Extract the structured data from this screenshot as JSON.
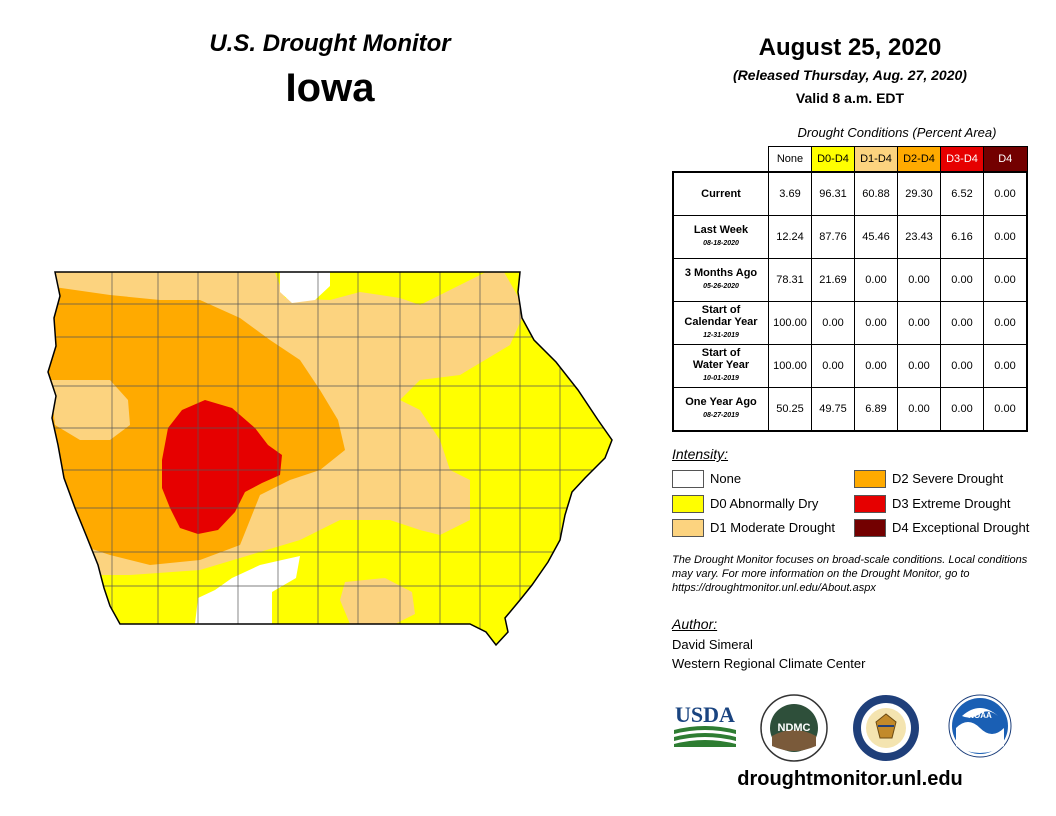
{
  "header": {
    "monitor_title": "U.S. Drought Monitor",
    "state": "Iowa",
    "date": "August 25, 2020",
    "released": "(Released Thursday, Aug. 27, 2020)",
    "valid": "Valid 8 a.m. EDT"
  },
  "table": {
    "caption": "Drought Conditions (Percent Area)",
    "columns": [
      {
        "label": "None",
        "color": "#ffffff",
        "text_color": "#000000"
      },
      {
        "label": "D0-D4",
        "color": "#ffff00",
        "text_color": "#000000"
      },
      {
        "label": "D1-D4",
        "color": "#fcd37f",
        "text_color": "#000000"
      },
      {
        "label": "D2-D4",
        "color": "#ffaa00",
        "text_color": "#000000"
      },
      {
        "label": "D3-D4",
        "color": "#e60000",
        "text_color": "#ffffff"
      },
      {
        "label": "D4",
        "color": "#730000",
        "text_color": "#ffffff"
      }
    ],
    "rows": [
      {
        "label": "Current",
        "label2": "",
        "date": "",
        "values": [
          "3.69",
          "96.31",
          "60.88",
          "29.30",
          "6.52",
          "0.00"
        ]
      },
      {
        "label": "Last Week",
        "label2": "",
        "date": "08-18-2020",
        "values": [
          "12.24",
          "87.76",
          "45.46",
          "23.43",
          "6.16",
          "0.00"
        ]
      },
      {
        "label": "3 Months Ago",
        "label2": "",
        "date": "05-26-2020",
        "values": [
          "78.31",
          "21.69",
          "0.00",
          "0.00",
          "0.00",
          "0.00"
        ]
      },
      {
        "label": "Start of",
        "label2": "Calendar Year",
        "date": "12-31-2019",
        "values": [
          "100.00",
          "0.00",
          "0.00",
          "0.00",
          "0.00",
          "0.00"
        ]
      },
      {
        "label": "Start of",
        "label2": "Water Year",
        "date": "10-01-2019",
        "values": [
          "100.00",
          "0.00",
          "0.00",
          "0.00",
          "0.00",
          "0.00"
        ]
      },
      {
        "label": "One Year Ago",
        "label2": "",
        "date": "08-27-2019",
        "values": [
          "50.25",
          "49.75",
          "6.89",
          "0.00",
          "0.00",
          "0.00"
        ]
      }
    ]
  },
  "legend": {
    "title": "Intensity:",
    "items": [
      {
        "label": "None",
        "color": "#ffffff"
      },
      {
        "label": "D0 Abnormally Dry",
        "color": "#ffff00"
      },
      {
        "label": "D1 Moderate Drought",
        "color": "#fcd37f"
      },
      {
        "label": "D2 Severe Drought",
        "color": "#ffaa00"
      },
      {
        "label": "D3 Extreme Drought",
        "color": "#e60000"
      },
      {
        "label": "D4 Exceptional Drought",
        "color": "#730000"
      }
    ]
  },
  "note": "The Drought Monitor focuses on broad-scale conditions. Local conditions may vary. For more information on the Drought Monitor, go to https://droughtmonitor.unl.edu/About.aspx",
  "author": {
    "title": "Author:",
    "name": "David Simeral",
    "org": "Western Regional Climate Center"
  },
  "logos": {
    "usda": "USDA",
    "ndmc": "NDMC",
    "noaa": "NOAA"
  },
  "website": "droughtmonitor.unl.edu",
  "colors": {
    "none": "#ffffff",
    "d0": "#ffff00",
    "d1": "#fcd37f",
    "d2": "#ffaa00",
    "d3": "#e60000",
    "d4": "#730000"
  }
}
